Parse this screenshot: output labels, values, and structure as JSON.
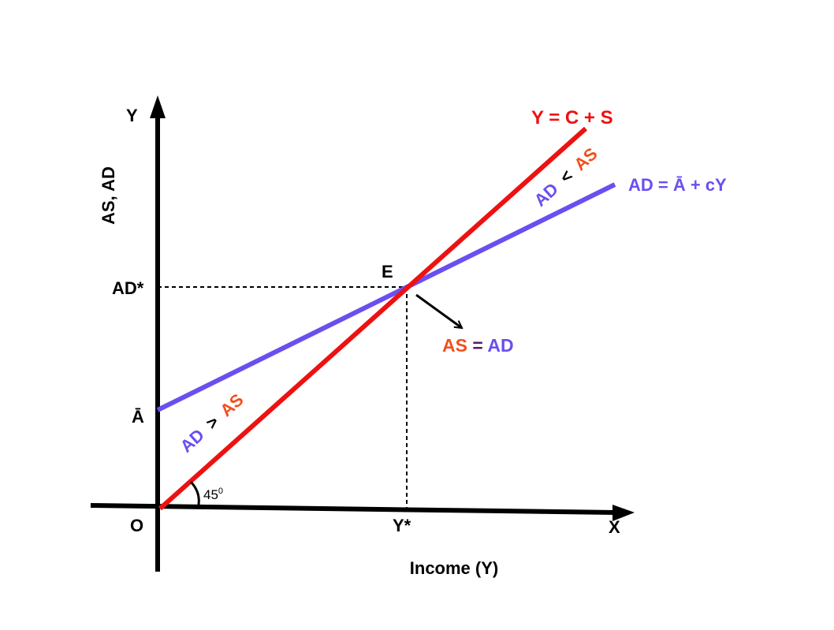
{
  "axes": {
    "y_label": "Y",
    "x_label": "X",
    "y_title": "AS, AD",
    "x_title": "Income (Y)",
    "origin": "O"
  },
  "ticks": {
    "ad_star": "AD*",
    "a_bar": "Ā",
    "y_star": "Y*"
  },
  "lines": {
    "as_label": "Y = C + S",
    "ad_label": "AD = Ā + cY"
  },
  "regions": {
    "upper_ad": "AD",
    "upper_op": "<",
    "upper_as": "AS",
    "lower_ad": "AD",
    "lower_op": ">",
    "lower_as": "AS"
  },
  "equilibrium": {
    "point": "E",
    "as": "AS",
    "eq": "=",
    "ad": "AD"
  },
  "angle": {
    "value": "45",
    "sup": "0"
  },
  "colors": {
    "as_line": "#ee1111",
    "ad_line": "#6a4ff0",
    "as_text": "#f05020",
    "axis": "#000000",
    "eq_sign": "#5a1a6a"
  }
}
